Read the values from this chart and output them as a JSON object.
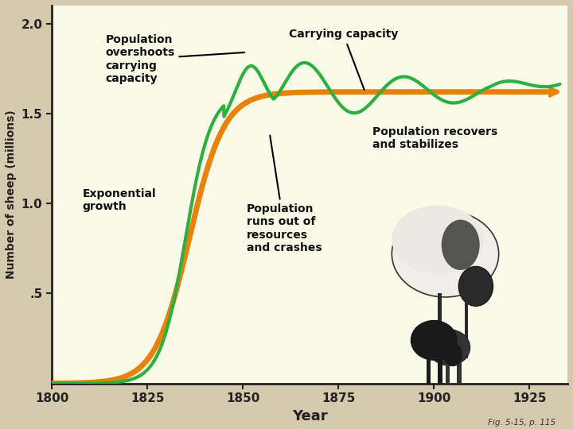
{
  "background_color": "#FAFAE8",
  "outer_background": "#D4CBAF",
  "carrying_capacity": 1.62,
  "x_min": 1800,
  "x_max": 1935,
  "y_min": 0,
  "y_max": 2.1,
  "yticks": [
    0.5,
    1.0,
    1.5,
    2.0
  ],
  "ytick_labels": [
    ".5",
    "1.0",
    "1.5",
    "2.0"
  ],
  "xticks": [
    1800,
    1825,
    1850,
    1875,
    1900,
    1925
  ],
  "xlabel": "Year",
  "ylabel": "Number of sheep (millions)",
  "orange_color": "#E8820A",
  "green_color": "#2DB040",
  "annotation_fontsize": 10,
  "tick_fontsize": 11,
  "fig_note": "Fig. 5-15, p. 115"
}
